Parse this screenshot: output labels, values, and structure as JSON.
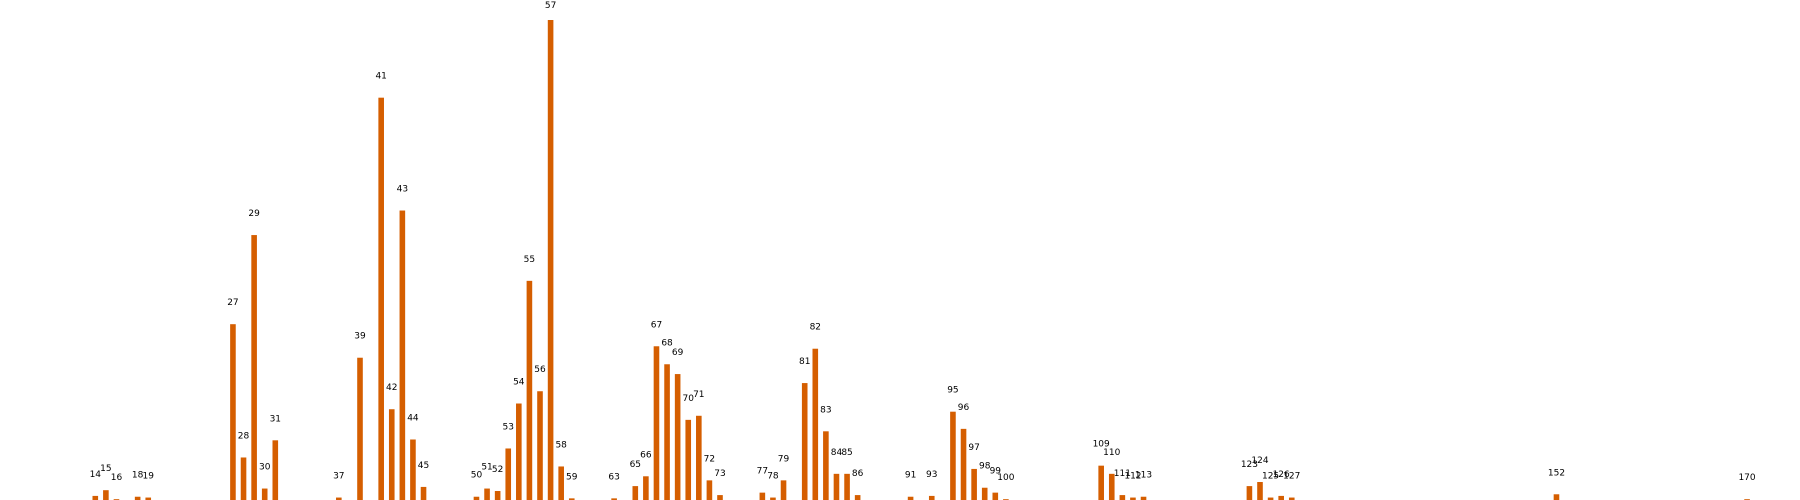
{
  "chart_data": {
    "type": "bar",
    "bar_color": "#d55e00",
    "grid": false,
    "axes_visible": false,
    "xlim": [
      5,
      175
    ],
    "ylim": [
      0,
      59
    ],
    "categories": [
      "14",
      "15",
      "16",
      "18",
      "19",
      "27",
      "28",
      "29",
      "30",
      "31",
      "37",
      "39",
      "41",
      "42",
      "43",
      "44",
      "45",
      "50",
      "51",
      "52",
      "53",
      "54",
      "55",
      "56",
      "57",
      "58",
      "59",
      "63",
      "65",
      "66",
      "67",
      "68",
      "69",
      "70",
      "71",
      "72",
      "73",
      "77",
      "78",
      "79",
      "81",
      "82",
      "83",
      "84",
      "85",
      "86",
      "91",
      "93",
      "95",
      "96",
      "97",
      "98",
      "99",
      "100",
      "109",
      "110",
      "111",
      "112",
      "113",
      "123",
      "124",
      "125",
      "126",
      "127",
      "152",
      "170"
    ],
    "x": [
      14,
      15,
      16,
      18,
      19,
      27,
      28,
      29,
      30,
      31,
      37,
      39,
      41,
      42,
      43,
      44,
      45,
      50,
      51,
      52,
      53,
      54,
      55,
      56,
      57,
      58,
      59,
      63,
      65,
      66,
      67,
      68,
      69,
      70,
      71,
      72,
      73,
      77,
      78,
      79,
      81,
      82,
      83,
      84,
      85,
      86,
      91,
      93,
      95,
      96,
      97,
      98,
      99,
      100,
      109,
      110,
      111,
      112,
      113,
      123,
      124,
      125,
      126,
      127,
      152,
      170
    ],
    "values": [
      0.5,
      1.2,
      0.1,
      0.4,
      0.3,
      21.5,
      5.2,
      32.4,
      1.4,
      7.3,
      0.3,
      17.4,
      49.2,
      11.1,
      35.4,
      7.4,
      1.6,
      0.4,
      1.4,
      1.1,
      6.3,
      11.8,
      26.8,
      13.3,
      58.7,
      4.1,
      0.2,
      0.2,
      1.7,
      2.9,
      18.8,
      16.6,
      15.4,
      9.8,
      10.3,
      2.4,
      0.6,
      0.9,
      0.3,
      2.4,
      14.3,
      18.5,
      8.4,
      3.2,
      3.2,
      0.6,
      0.4,
      0.5,
      10.8,
      8.7,
      3.8,
      1.5,
      0.9,
      0.1,
      4.2,
      3.2,
      0.6,
      0.3,
      0.4,
      1.7,
      2.2,
      0.3,
      0.5,
      0.3,
      0.7,
      0.1
    ]
  }
}
